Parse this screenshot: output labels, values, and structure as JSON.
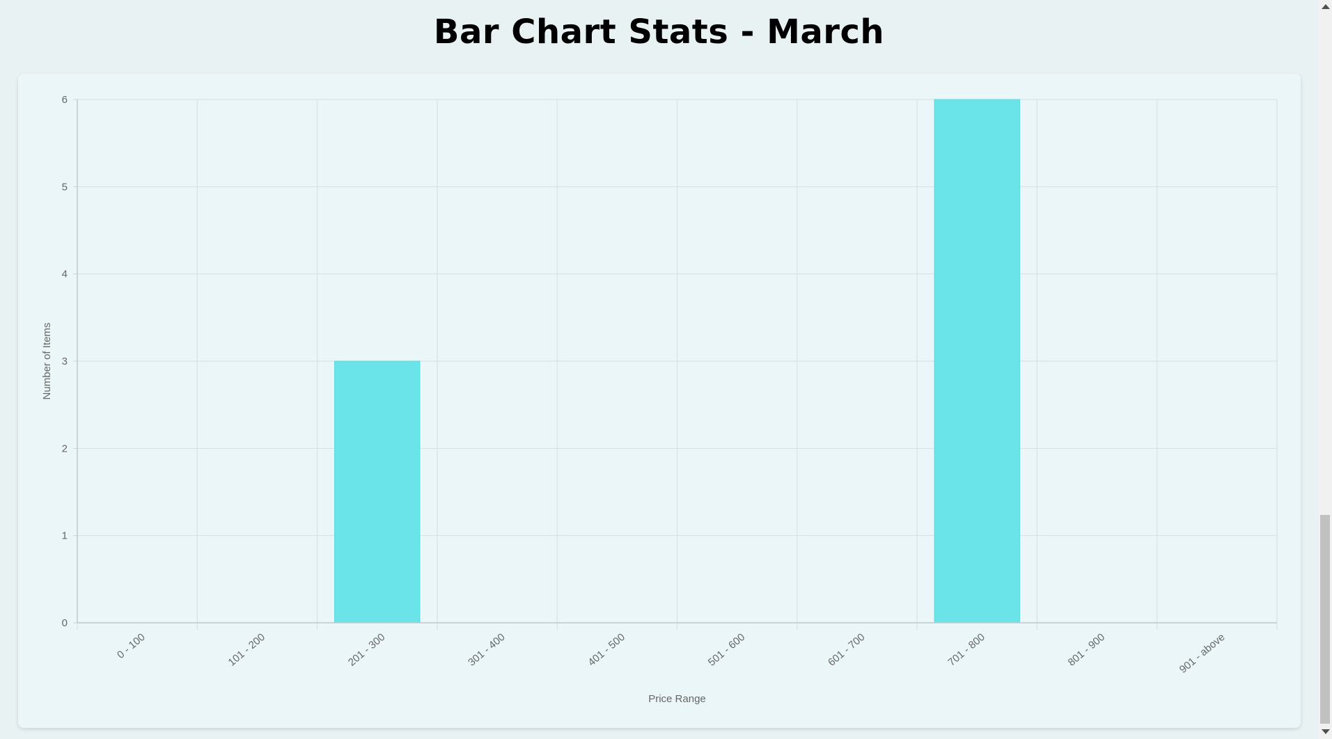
{
  "page": {
    "title": "Bar Chart Stats - March"
  },
  "chart_data": {
    "type": "bar",
    "title": "",
    "categories": [
      "0 - 100",
      "101 - 200",
      "201 - 300",
      "301 - 400",
      "401 - 500",
      "501 - 600",
      "601 - 700",
      "701 - 800",
      "801 - 900",
      "901 - above"
    ],
    "series": [
      {
        "values": [
          0,
          0,
          3,
          0,
          0,
          0,
          0,
          6,
          0,
          0
        ],
        "color": "#6ae4e8"
      }
    ],
    "xlabel": "Price Range",
    "ylabel": "Number of Items",
    "ylim": [
      0,
      6
    ],
    "yticks": [
      0,
      1,
      2,
      3,
      4,
      5,
      6
    ],
    "grid": true,
    "legend": "none"
  }
}
